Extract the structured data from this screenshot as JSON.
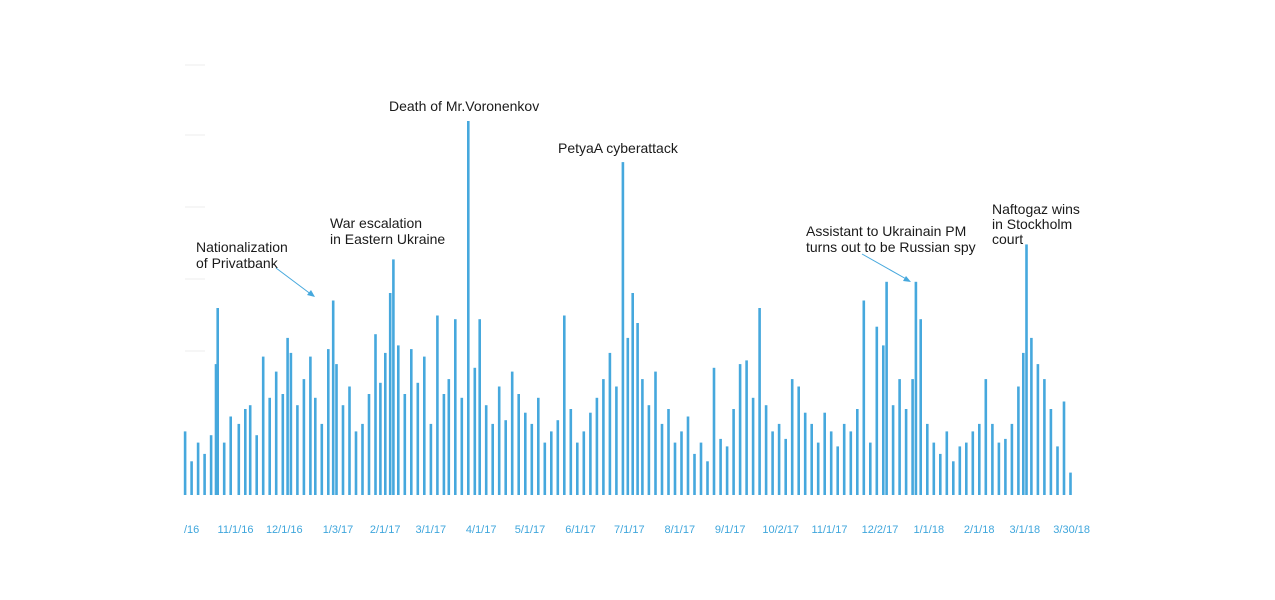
{
  "chart_data": {
    "type": "bar",
    "title": "",
    "xlabel": "",
    "ylabel": "",
    "x_range": [
      "2016-10-01",
      "2018-03-30"
    ],
    "ylim": [
      0,
      100
    ],
    "grid": false,
    "colors": {
      "bars": "#46a8dd",
      "ticks": "#3fa6dc",
      "annotations": "#1a1a1a"
    },
    "tick_labels": [
      {
        "date": "2016-10-01",
        "label": "/16"
      },
      {
        "date": "2016-11-01",
        "label": "11/1/16"
      },
      {
        "date": "2016-12-01",
        "label": "12/1/16"
      },
      {
        "date": "2017-01-03",
        "label": "1/3/17"
      },
      {
        "date": "2017-02-01",
        "label": "2/1/17"
      },
      {
        "date": "2017-03-01",
        "label": "3/1/17"
      },
      {
        "date": "2017-04-01",
        "label": "4/1/17"
      },
      {
        "date": "2017-05-01",
        "label": "5/1/17"
      },
      {
        "date": "2017-06-01",
        "label": "6/1/17"
      },
      {
        "date": "2017-07-01",
        "label": "7/1/17"
      },
      {
        "date": "2017-08-01",
        "label": "8/1/17"
      },
      {
        "date": "2017-09-01",
        "label": "9/1/17"
      },
      {
        "date": "2017-10-02",
        "label": "10/2/17"
      },
      {
        "date": "2017-11-01",
        "label": "11/1/17"
      },
      {
        "date": "2017-12-02",
        "label": "12/2/17"
      },
      {
        "date": "2018-01-01",
        "label": "1/1/18"
      },
      {
        "date": "2018-02-01",
        "label": "2/1/18"
      },
      {
        "date": "2018-03-01",
        "label": "3/1/18"
      },
      {
        "date": "2018-03-30",
        "label": "3/30/18"
      }
    ],
    "series": [
      {
        "values": [
          {
            "date": "2016-10-01",
            "y": 17
          },
          {
            "date": "2016-10-05",
            "y": 9
          },
          {
            "date": "2016-10-09",
            "y": 14
          },
          {
            "date": "2016-10-13",
            "y": 11
          },
          {
            "date": "2016-10-17",
            "y": 16
          },
          {
            "date": "2016-10-20",
            "y": 35
          },
          {
            "date": "2016-10-21",
            "y": 50
          },
          {
            "date": "2016-10-25",
            "y": 14
          },
          {
            "date": "2016-10-29",
            "y": 21
          },
          {
            "date": "2016-11-03",
            "y": 19
          },
          {
            "date": "2016-11-07",
            "y": 23
          },
          {
            "date": "2016-11-10",
            "y": 24
          },
          {
            "date": "2016-11-14",
            "y": 16
          },
          {
            "date": "2016-11-18",
            "y": 37
          },
          {
            "date": "2016-11-22",
            "y": 26
          },
          {
            "date": "2016-11-26",
            "y": 33
          },
          {
            "date": "2016-11-30",
            "y": 27
          },
          {
            "date": "2016-12-03",
            "y": 42
          },
          {
            "date": "2016-12-05",
            "y": 38
          },
          {
            "date": "2016-12-09",
            "y": 24
          },
          {
            "date": "2016-12-13",
            "y": 31
          },
          {
            "date": "2016-12-17",
            "y": 37
          },
          {
            "date": "2016-12-20",
            "y": 26
          },
          {
            "date": "2016-12-24",
            "y": 19
          },
          {
            "date": "2016-12-28",
            "y": 39
          },
          {
            "date": "2016-12-31",
            "y": 52
          },
          {
            "date": "2017-01-02",
            "y": 35
          },
          {
            "date": "2017-01-06",
            "y": 24
          },
          {
            "date": "2017-01-10",
            "y": 29
          },
          {
            "date": "2017-01-14",
            "y": 17
          },
          {
            "date": "2017-01-18",
            "y": 19
          },
          {
            "date": "2017-01-22",
            "y": 27
          },
          {
            "date": "2017-01-26",
            "y": 43
          },
          {
            "date": "2017-01-29",
            "y": 30
          },
          {
            "date": "2017-02-01",
            "y": 38
          },
          {
            "date": "2017-02-04",
            "y": 54
          },
          {
            "date": "2017-02-06",
            "y": 63
          },
          {
            "date": "2017-02-09",
            "y": 40
          },
          {
            "date": "2017-02-13",
            "y": 27
          },
          {
            "date": "2017-02-17",
            "y": 39
          },
          {
            "date": "2017-02-21",
            "y": 30
          },
          {
            "date": "2017-02-25",
            "y": 37
          },
          {
            "date": "2017-03-01",
            "y": 19
          },
          {
            "date": "2017-03-05",
            "y": 48
          },
          {
            "date": "2017-03-09",
            "y": 27
          },
          {
            "date": "2017-03-12",
            "y": 31
          },
          {
            "date": "2017-03-16",
            "y": 47
          },
          {
            "date": "2017-03-20",
            "y": 26
          },
          {
            "date": "2017-03-24",
            "y": 100
          },
          {
            "date": "2017-03-28",
            "y": 34
          },
          {
            "date": "2017-03-31",
            "y": 47
          },
          {
            "date": "2017-04-04",
            "y": 24
          },
          {
            "date": "2017-04-08",
            "y": 19
          },
          {
            "date": "2017-04-12",
            "y": 29
          },
          {
            "date": "2017-04-16",
            "y": 20
          },
          {
            "date": "2017-04-20",
            "y": 33
          },
          {
            "date": "2017-04-24",
            "y": 27
          },
          {
            "date": "2017-04-28",
            "y": 22
          },
          {
            "date": "2017-05-02",
            "y": 19
          },
          {
            "date": "2017-05-06",
            "y": 26
          },
          {
            "date": "2017-05-10",
            "y": 14
          },
          {
            "date": "2017-05-14",
            "y": 17
          },
          {
            "date": "2017-05-18",
            "y": 20
          },
          {
            "date": "2017-05-22",
            "y": 48
          },
          {
            "date": "2017-05-26",
            "y": 23
          },
          {
            "date": "2017-05-30",
            "y": 14
          },
          {
            "date": "2017-06-03",
            "y": 17
          },
          {
            "date": "2017-06-07",
            "y": 22
          },
          {
            "date": "2017-06-11",
            "y": 26
          },
          {
            "date": "2017-06-15",
            "y": 31
          },
          {
            "date": "2017-06-19",
            "y": 38
          },
          {
            "date": "2017-06-23",
            "y": 29
          },
          {
            "date": "2017-06-27",
            "y": 89
          },
          {
            "date": "2017-06-30",
            "y": 42
          },
          {
            "date": "2017-07-03",
            "y": 54
          },
          {
            "date": "2017-07-06",
            "y": 46
          },
          {
            "date": "2017-07-09",
            "y": 31
          },
          {
            "date": "2017-07-13",
            "y": 24
          },
          {
            "date": "2017-07-17",
            "y": 33
          },
          {
            "date": "2017-07-21",
            "y": 19
          },
          {
            "date": "2017-07-25",
            "y": 23
          },
          {
            "date": "2017-07-29",
            "y": 14
          },
          {
            "date": "2017-08-02",
            "y": 17
          },
          {
            "date": "2017-08-06",
            "y": 21
          },
          {
            "date": "2017-08-10",
            "y": 11
          },
          {
            "date": "2017-08-14",
            "y": 14
          },
          {
            "date": "2017-08-18",
            "y": 9
          },
          {
            "date": "2017-08-22",
            "y": 34
          },
          {
            "date": "2017-08-26",
            "y": 15
          },
          {
            "date": "2017-08-30",
            "y": 13
          },
          {
            "date": "2017-09-03",
            "y": 23
          },
          {
            "date": "2017-09-07",
            "y": 35
          },
          {
            "date": "2017-09-11",
            "y": 36
          },
          {
            "date": "2017-09-15",
            "y": 26
          },
          {
            "date": "2017-09-19",
            "y": 50
          },
          {
            "date": "2017-09-23",
            "y": 24
          },
          {
            "date": "2017-09-27",
            "y": 17
          },
          {
            "date": "2017-10-01",
            "y": 19
          },
          {
            "date": "2017-10-05",
            "y": 15
          },
          {
            "date": "2017-10-09",
            "y": 31
          },
          {
            "date": "2017-10-13",
            "y": 29
          },
          {
            "date": "2017-10-17",
            "y": 22
          },
          {
            "date": "2017-10-21",
            "y": 19
          },
          {
            "date": "2017-10-25",
            "y": 14
          },
          {
            "date": "2017-10-29",
            "y": 22
          },
          {
            "date": "2017-11-02",
            "y": 17
          },
          {
            "date": "2017-11-06",
            "y": 13
          },
          {
            "date": "2017-11-10",
            "y": 19
          },
          {
            "date": "2017-11-14",
            "y": 17
          },
          {
            "date": "2017-11-18",
            "y": 23
          },
          {
            "date": "2017-11-22",
            "y": 52
          },
          {
            "date": "2017-11-26",
            "y": 14
          },
          {
            "date": "2017-11-30",
            "y": 45
          },
          {
            "date": "2017-12-04",
            "y": 40
          },
          {
            "date": "2017-12-06",
            "y": 57
          },
          {
            "date": "2017-12-10",
            "y": 24
          },
          {
            "date": "2017-12-14",
            "y": 31
          },
          {
            "date": "2017-12-18",
            "y": 23
          },
          {
            "date": "2017-12-22",
            "y": 31
          },
          {
            "date": "2017-12-24",
            "y": 57
          },
          {
            "date": "2017-12-27",
            "y": 47
          },
          {
            "date": "2017-12-31",
            "y": 19
          },
          {
            "date": "2018-01-04",
            "y": 14
          },
          {
            "date": "2018-01-08",
            "y": 11
          },
          {
            "date": "2018-01-12",
            "y": 17
          },
          {
            "date": "2018-01-16",
            "y": 9
          },
          {
            "date": "2018-01-20",
            "y": 13
          },
          {
            "date": "2018-01-24",
            "y": 14
          },
          {
            "date": "2018-01-28",
            "y": 17
          },
          {
            "date": "2018-02-01",
            "y": 19
          },
          {
            "date": "2018-02-05",
            "y": 31
          },
          {
            "date": "2018-02-09",
            "y": 19
          },
          {
            "date": "2018-02-13",
            "y": 14
          },
          {
            "date": "2018-02-17",
            "y": 15
          },
          {
            "date": "2018-02-21",
            "y": 19
          },
          {
            "date": "2018-02-25",
            "y": 29
          },
          {
            "date": "2018-02-28",
            "y": 38
          },
          {
            "date": "2018-03-02",
            "y": 67
          },
          {
            "date": "2018-03-05",
            "y": 42
          },
          {
            "date": "2018-03-09",
            "y": 35
          },
          {
            "date": "2018-03-13",
            "y": 31
          },
          {
            "date": "2018-03-17",
            "y": 23
          },
          {
            "date": "2018-03-21",
            "y": 13
          },
          {
            "date": "2018-03-25",
            "y": 25
          },
          {
            "date": "2018-03-29",
            "y": 6
          }
        ]
      }
    ],
    "annotations": [
      {
        "lines": [
          "Nationalization",
          "of Privatbank"
        ],
        "date": "2016-12-31",
        "arrow": true
      },
      {
        "lines": [
          "War escalation",
          "in Eastern Ukraine"
        ],
        "date": "2017-02-06",
        "arrow": false
      },
      {
        "lines": [
          "Death of Mr.Voronenkov"
        ],
        "date": "2017-03-24",
        "arrow": false
      },
      {
        "lines": [
          "PetyaA cyberattack"
        ],
        "date": "2017-06-27",
        "arrow": false
      },
      {
        "lines": [
          "Assistant to Ukrainain PM",
          "turns out to be Russian spy"
        ],
        "date": "2017-12-24",
        "arrow": true
      },
      {
        "lines": [
          "Naftogaz wins",
          "in Stockholm",
          "court"
        ],
        "date": "2018-03-02",
        "arrow": false
      }
    ]
  }
}
